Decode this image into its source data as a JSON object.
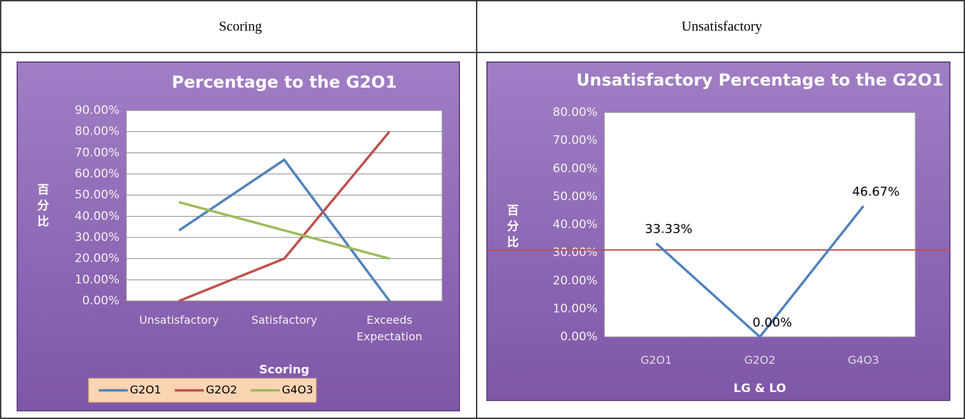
{
  "table": {
    "headers": [
      "Scoring",
      "Unsatisfactory"
    ]
  },
  "chart_data": [
    {
      "type": "line",
      "title": "Percentage to the G2O1",
      "y_label": "百分比",
      "x_label": "Scoring",
      "categories": [
        "Unsatisfactory",
        "Satisfactory",
        "Exceeds Expectation"
      ],
      "series": [
        {
          "name": "G2O1",
          "color": "#4f81bd",
          "values": [
            33.33,
            66.67,
            0
          ]
        },
        {
          "name": "G2O2",
          "color": "#c0504d",
          "values": [
            0,
            20,
            80
          ]
        },
        {
          "name": "G4O3",
          "color": "#9bbb59",
          "values": [
            46.67,
            33.33,
            20
          ]
        }
      ],
      "ylim": [
        0,
        90
      ],
      "yticks": [
        {
          "value": 0,
          "label": "0.00%"
        },
        {
          "value": 10,
          "label": "10.00%"
        },
        {
          "value": 20,
          "label": "20.00%"
        },
        {
          "value": 30,
          "label": "30.00%"
        },
        {
          "value": 40,
          "label": "40.00%"
        },
        {
          "value": 50,
          "label": "50.00%"
        },
        {
          "value": 60,
          "label": "60.00%"
        },
        {
          "value": 70,
          "label": "70.00%"
        },
        {
          "value": 80,
          "label": "80.00%"
        },
        {
          "value": 90,
          "label": "90.00%"
        }
      ],
      "grid": true,
      "legend": "bottom"
    },
    {
      "type": "line",
      "title": "Unsatisfactory Percentage to the G2O1",
      "y_label": "百分比",
      "x_label": "LG & LO",
      "categories": [
        "G2O1",
        "G2O2",
        "G4O3"
      ],
      "series": [
        {
          "color": "#4f81bd",
          "values": [
            33.33,
            0,
            46.67
          ],
          "value_labels": [
            "33.33%",
            "0.00%",
            "46.67%"
          ]
        }
      ],
      "reference_line": {
        "value": 31,
        "color": "#c0504d"
      },
      "ylim": [
        0,
        80
      ],
      "yticks": [
        {
          "value": 0,
          "label": "0.00%"
        },
        {
          "value": 10,
          "label": "10.00%"
        },
        {
          "value": 20,
          "label": "20.00%"
        },
        {
          "value": 30,
          "label": "30.00%"
        },
        {
          "value": 40,
          "label": "40.00%"
        },
        {
          "value": 50,
          "label": "50.00%"
        },
        {
          "value": 60,
          "label": "60.00%"
        },
        {
          "value": 70,
          "label": "70.00%"
        },
        {
          "value": 80,
          "label": "80.00%"
        }
      ],
      "grid": false
    }
  ]
}
